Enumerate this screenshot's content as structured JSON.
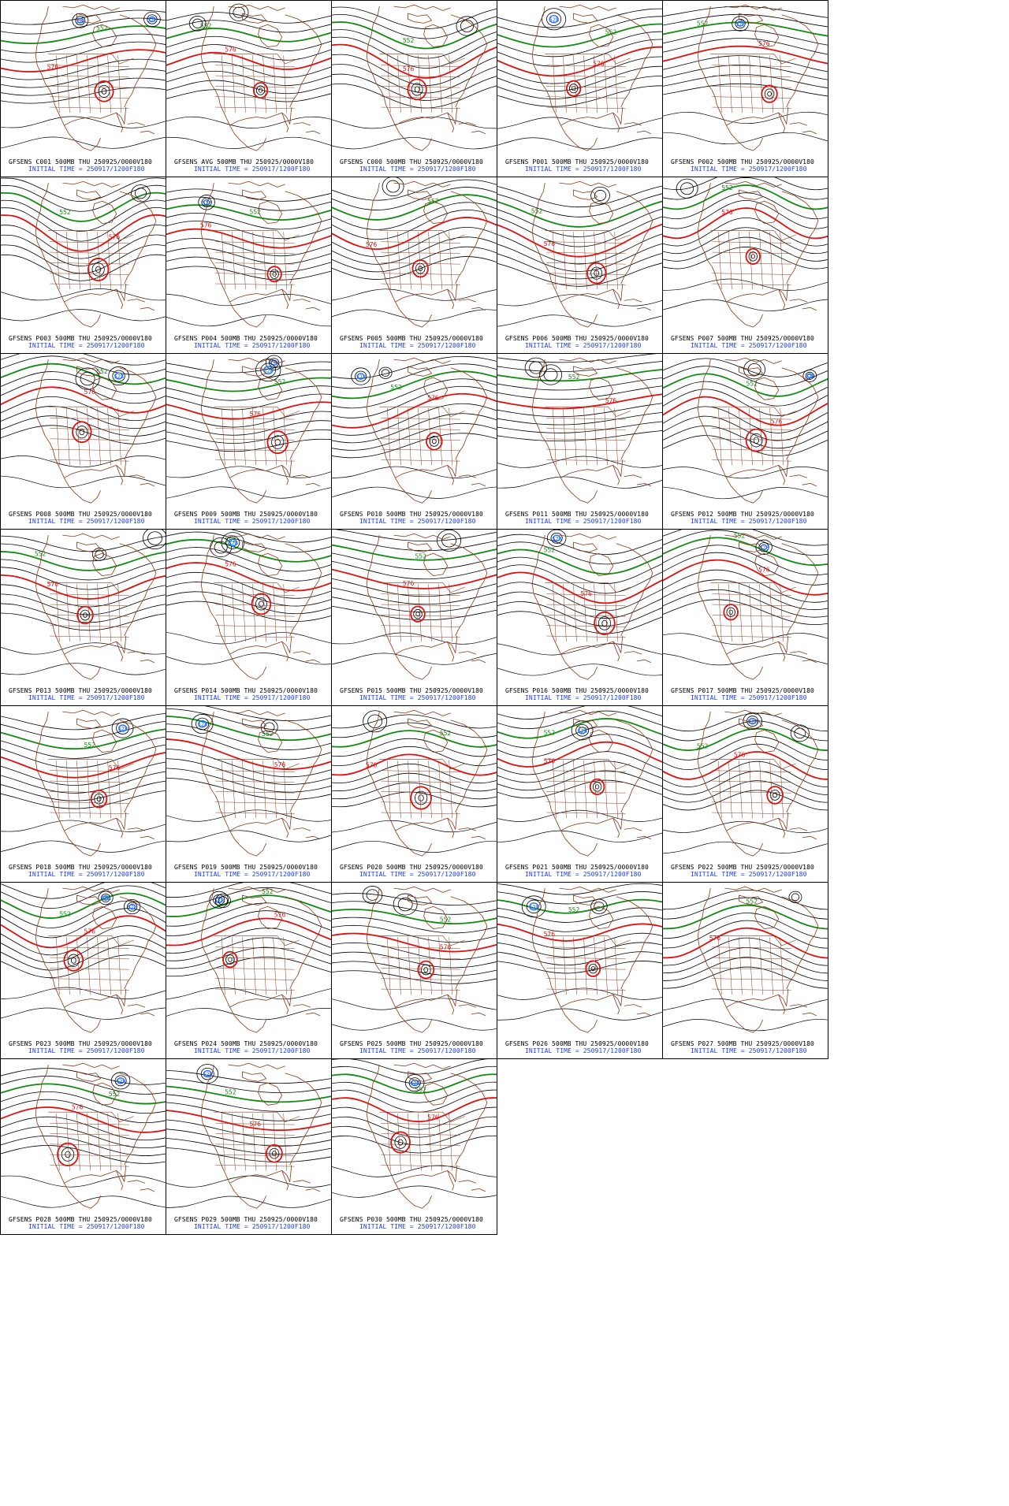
{
  "page": {
    "title": ""
  },
  "colors": {
    "border": "#000000",
    "background": "#ffffff",
    "contour": "#000000",
    "contour_552": "#138a13",
    "contour_576": "#e01010",
    "contour_528": "#1f6fff",
    "coastline": "#8b3a1a",
    "caption_top": "#000000",
    "caption_bottom": "#1a3cff"
  },
  "contour_labels": {
    "green": "552",
    "red": "576",
    "blue": "528"
  },
  "panels": [
    {
      "member": "C001",
      "line1": "GFSENS C001 500MB THU 250925/0000V180",
      "line2": "INITIAL TIME = 250917/1200F180",
      "seed": 11
    },
    {
      "member": "AVG",
      "line1": "GFSENS AVG 500MB THU 250925/0000V180",
      "line2": "INITIAL TIME = 250917/1200F180",
      "seed": 17
    },
    {
      "member": "C000",
      "line1": "GFSENS C000 500MB THU 250925/0000V180",
      "line2": "INITIAL TIME = 250917/1200F180",
      "seed": 23
    },
    {
      "member": "P001",
      "line1": "GFSENS P001 500MB THU 250925/0000V180",
      "line2": "INITIAL TIME = 250917/1200F180",
      "seed": 29
    },
    {
      "member": "P002",
      "line1": "GFSENS P002 500MB THU 250925/0000V180",
      "line2": "INITIAL TIME = 250917/1200F180",
      "seed": 31
    },
    {
      "member": "P003",
      "line1": "GFSENS P003 500MB THU 250925/0000V180",
      "line2": "INITIAL TIME = 250917/1200F180",
      "seed": 37
    },
    {
      "member": "P004",
      "line1": "GFSENS P004 500MB THU 250925/0000V180",
      "line2": "INITIAL TIME = 250917/1200F180",
      "seed": 41
    },
    {
      "member": "P005",
      "line1": "GFSENS P005 500MB THU 250925/0000V180",
      "line2": "INITIAL TIME = 250917/1200F180",
      "seed": 43
    },
    {
      "member": "P006",
      "line1": "GFSENS P006 500MB THU 250925/0000V180",
      "line2": "INITIAL TIME = 250917/1200F180",
      "seed": 47
    },
    {
      "member": "P007",
      "line1": "GFSENS P007 500MB THU 250925/0000V180",
      "line2": "INITIAL TIME = 250917/1200F180",
      "seed": 53
    },
    {
      "member": "P008",
      "line1": "GFSENS P008 500MB THU 250925/0000V180",
      "line2": "INITIAL TIME = 250917/1200F180",
      "seed": 59
    },
    {
      "member": "P009",
      "line1": "GFSENS P009 500MB THU 250925/0000V180",
      "line2": "INITIAL TIME = 250917/1200F180",
      "seed": 61
    },
    {
      "member": "P010",
      "line1": "GFSENS P010 500MB THU 250925/0000V180",
      "line2": "INITIAL TIME = 250917/1200F180",
      "seed": 67
    },
    {
      "member": "P011",
      "line1": "GFSENS P011 500MB THU 250925/0000V180",
      "line2": "INITIAL TIME = 250917/1200F180",
      "seed": 71
    },
    {
      "member": "P012",
      "line1": "GFSENS P012 500MB THU 250925/0000V180",
      "line2": "INITIAL TIME = 250917/1200F180",
      "seed": 73
    },
    {
      "member": "P013",
      "line1": "GFSENS P013 500MB THU 250925/0000V180",
      "line2": "INITIAL TIME = 250917/1200F180",
      "seed": 79
    },
    {
      "member": "P014",
      "line1": "GFSENS P014 500MB THU 250925/0000V180",
      "line2": "INITIAL TIME = 250917/1200F180",
      "seed": 83
    },
    {
      "member": "P015",
      "line1": "GFSENS P015 500MB THU 250925/0000V180",
      "line2": "INITIAL TIME = 250917/1200F180",
      "seed": 89
    },
    {
      "member": "P016",
      "line1": "GFSENS P016 500MB THU 250925/0000V180",
      "line2": "INITIAL TIME = 250917/1200F180",
      "seed": 97
    },
    {
      "member": "P017",
      "line1": "GFSENS P017 500MB THU 250925/0000V180",
      "line2": "INITIAL TIME = 250917/1200F180",
      "seed": 101
    },
    {
      "member": "P018",
      "line1": "GFSENS P018 500MB THU 250925/0000V180",
      "line2": "INITIAL TIME = 250917/1200F180",
      "seed": 103
    },
    {
      "member": "P019",
      "line1": "GFSENS P019 500MB THU 250925/0000V180",
      "line2": "INITIAL TIME = 250917/1200F180",
      "seed": 107
    },
    {
      "member": "P020",
      "line1": "GFSENS P020 500MB THU 250925/0000V180",
      "line2": "INITIAL TIME = 250917/1200F180",
      "seed": 109
    },
    {
      "member": "P021",
      "line1": "GFSENS P021 500MB THU 250925/0000V180",
      "line2": "INITIAL TIME = 250917/1200F180",
      "seed": 113
    },
    {
      "member": "P022",
      "line1": "GFSENS P022 500MB THU 250925/0000V180",
      "line2": "INITIAL TIME = 250917/1200F180",
      "seed": 127
    },
    {
      "member": "P023",
      "line1": "GFSENS P023 500MB THU 250925/0000V180",
      "line2": "INITIAL TIME = 250917/1200F180",
      "seed": 131
    },
    {
      "member": "P024",
      "line1": "GFSENS P024 500MB THU 250925/0000V180",
      "line2": "INITIAL TIME = 250917/1200F180",
      "seed": 137
    },
    {
      "member": "P025",
      "line1": "GFSENS P025 500MB THU 250925/0000V180",
      "line2": "INITIAL TIME = 250917/1200F180",
      "seed": 139
    },
    {
      "member": "P026",
      "line1": "GFSENS P026 500MB THU 250925/0000V180",
      "line2": "INITIAL TIME = 250917/1200F180",
      "seed": 149
    },
    {
      "member": "P027",
      "line1": "GFSENS P027 500MB THU 250925/0000V180",
      "line2": "INITIAL TIME = 250917/1200F180",
      "seed": 151
    },
    {
      "member": "P028",
      "line1": "GFSENS P028 500MB THU 250925/0000V180",
      "line2": "INITIAL TIME = 250917/1200F180",
      "seed": 157
    },
    {
      "member": "P029",
      "line1": "GFSENS P029 500MB THU 250925/0000V180",
      "line2": "INITIAL TIME = 250917/1200F180",
      "seed": 163
    },
    {
      "member": "P030",
      "line1": "GFSENS P030 500MB THU 250925/0000V180",
      "line2": "INITIAL TIME = 250917/1200F180",
      "seed": 167
    }
  ]
}
